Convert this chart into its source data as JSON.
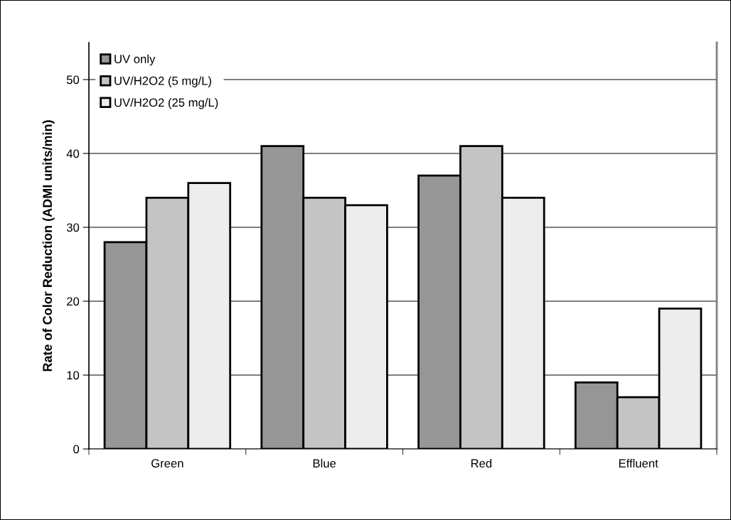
{
  "chart_data": {
    "type": "bar",
    "ylabel": "Rate of Color Reduction (ADMI units/min)",
    "categories": [
      "Green",
      "Blue",
      "Red",
      "Effluent"
    ],
    "series": [
      {
        "name": "UV only",
        "color": "#969696",
        "values": [
          28,
          41,
          37,
          9
        ]
      },
      {
        "name": "UV/H2O2 (5 mg/L)",
        "color": "#c4c4c4",
        "values": [
          34,
          34,
          41,
          7
        ]
      },
      {
        "name": "UV/H2O2 (25 mg/L)",
        "color": "#ededed",
        "values": [
          36,
          33,
          34,
          19
        ]
      }
    ],
    "ylim": [
      0,
      55
    ],
    "yticks": [
      0,
      10,
      20,
      30,
      40,
      50
    ],
    "grid": "y",
    "legend": "top left"
  }
}
